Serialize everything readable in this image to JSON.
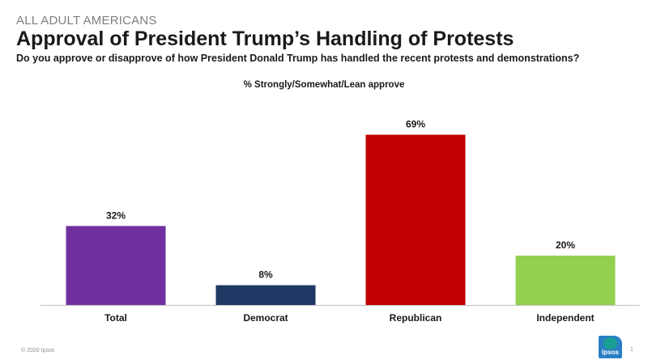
{
  "header": {
    "kicker": "ALL ADULT AMERICANS",
    "title": "Approval of President Trump’s Handling of Protests",
    "question": "Do you approve or disapprove of how President Donald Trump has handled the recent protests and demonstrations?"
  },
  "chart_data": {
    "type": "bar",
    "title": "% Strongly/Somewhat/Lean approve",
    "categories": [
      "Total",
      "Democrat",
      "Republican",
      "Independent"
    ],
    "values": [
      32,
      8,
      69,
      20
    ],
    "value_labels": [
      "32%",
      "8%",
      "69%",
      "20%"
    ],
    "colors": [
      "#7030a0",
      "#1f3864",
      "#c00000",
      "#92d050"
    ],
    "ylim": [
      0,
      100
    ],
    "grid": false,
    "xlabel": "",
    "ylabel": ""
  },
  "footer": {
    "copyright": "© 2020 Ipsos",
    "logo_text": "Ipsos",
    "page_number": "1"
  },
  "colors": {
    "axis": "#bfbfbf",
    "text": "#1a1a1a"
  }
}
